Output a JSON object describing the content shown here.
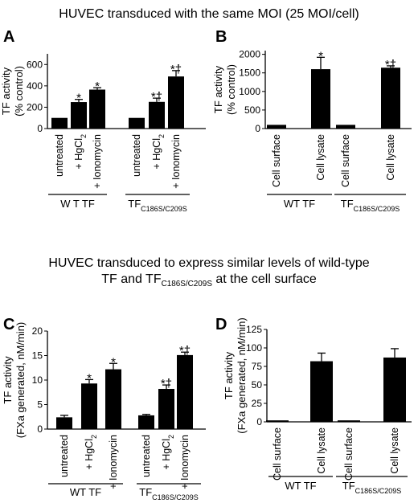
{
  "headings": {
    "top": "HUVEC transduced with the same MOI (25 MOI/cell)",
    "middle_line1": "HUVEC transduced to express similar levels of wild-type",
    "middle_line2_prefix": "TF and TF",
    "middle_line2_sub": "C186S/C209S",
    "middle_line2_suffix": " at the cell surface"
  },
  "chart_data": [
    {
      "panel": "A",
      "type": "bar",
      "ylabel": [
        "TF activity",
        "(% control)"
      ],
      "ylim": [
        0,
        700
      ],
      "yticks": [
        0,
        200,
        400,
        600
      ],
      "groups": [
        {
          "label": "W T TF",
          "sub": ""
        },
        {
          "label": "TF",
          "sub": "C186S/C209S"
        }
      ],
      "bars": [
        {
          "group": 0,
          "label": "untreated",
          "value": 100,
          "error": 0,
          "marker": ""
        },
        {
          "group": 0,
          "label": "+ HgCl2",
          "value": 248,
          "error": 25,
          "marker": "*"
        },
        {
          "group": 0,
          "label": "+ Ionomycin",
          "value": 365,
          "error": 18,
          "marker": "*"
        },
        {
          "group": 1,
          "label": "untreated",
          "value": 100,
          "error": 0,
          "marker": ""
        },
        {
          "group": 1,
          "label": "+ HgCl2",
          "value": 250,
          "error": 35,
          "marker": "*†"
        },
        {
          "group": 1,
          "label": "+ Ionomycin",
          "value": 488,
          "error": 55,
          "marker": "*†"
        }
      ]
    },
    {
      "panel": "B",
      "type": "bar",
      "ylabel": [
        "TF activity",
        "(% control)"
      ],
      "ylim": [
        0,
        2100
      ],
      "yticks": [
        0,
        500,
        1000,
        1500,
        2000
      ],
      "groups": [
        {
          "label": "WT TF",
          "sub": ""
        },
        {
          "label": "TF",
          "sub": "C186S/C209S"
        }
      ],
      "bars": [
        {
          "group": 0,
          "label": "Cell surface",
          "value": 100,
          "error": 0,
          "marker": ""
        },
        {
          "group": 0,
          "label": "Cell lysate",
          "value": 1600,
          "error": 320,
          "marker": "*"
        },
        {
          "group": 1,
          "label": "Cell surface",
          "value": 100,
          "error": 0,
          "marker": ""
        },
        {
          "group": 1,
          "label": "Cell lysate",
          "value": 1640,
          "error": 50,
          "marker": "*†"
        }
      ]
    },
    {
      "panel": "C",
      "type": "bar",
      "ylabel": [
        "TF activity",
        "(FXa generated, nM/min)"
      ],
      "ylim": [
        0,
        20
      ],
      "yticks": [
        0,
        5,
        10,
        15,
        20
      ],
      "groups": [
        {
          "label": "WT TF",
          "sub": ""
        },
        {
          "label": "TF",
          "sub": "C186S/C209S"
        }
      ],
      "bars": [
        {
          "group": 0,
          "label": "untreated",
          "value": 2.4,
          "error": 0.4,
          "marker": ""
        },
        {
          "group": 0,
          "label": "+ HgCl2",
          "value": 9.3,
          "error": 0.8,
          "marker": "*"
        },
        {
          "group": 0,
          "label": "+ Ionomycin",
          "value": 12.2,
          "error": 1.2,
          "marker": "*"
        },
        {
          "group": 1,
          "label": "untreated",
          "value": 2.8,
          "error": 0.2,
          "marker": ""
        },
        {
          "group": 1,
          "label": "+ HgCl2",
          "value": 8.2,
          "error": 0.8,
          "marker": "*†"
        },
        {
          "group": 1,
          "label": "+ Ionomycin",
          "value": 15.1,
          "error": 0.6,
          "marker": "*†"
        }
      ]
    },
    {
      "panel": "D",
      "type": "bar",
      "ylabel": [
        "TF activity",
        "(FXa generated, nM/min)"
      ],
      "ylim": [
        0,
        125
      ],
      "yticks": [
        0,
        25,
        50,
        75,
        100,
        125
      ],
      "groups": [
        {
          "label": "WT TF",
          "sub": ""
        },
        {
          "label": "TF",
          "sub": "C186S/C209S"
        }
      ],
      "bars": [
        {
          "group": 0,
          "label": "Cell surface",
          "value": 2,
          "error": 0,
          "marker": ""
        },
        {
          "group": 0,
          "label": "Cell lysate",
          "value": 82,
          "error": 11,
          "marker": ""
        },
        {
          "group": 1,
          "label": "Cell surface",
          "value": 2,
          "error": 0,
          "marker": ""
        },
        {
          "group": 1,
          "label": "Cell lysate",
          "value": 87,
          "error": 12,
          "marker": ""
        }
      ]
    }
  ]
}
